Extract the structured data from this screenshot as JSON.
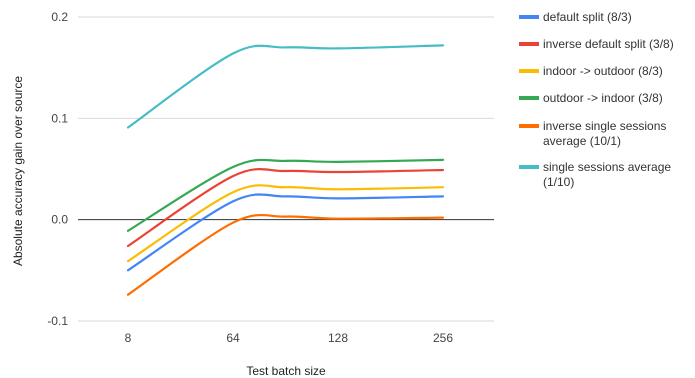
{
  "chart_data": {
    "type": "line",
    "title": "",
    "xlabel": "Test batch size",
    "ylabel": "Absolute accuracy gain over source",
    "x": [
      "8",
      "64",
      "128",
      "256"
    ],
    "ylim": [
      -0.1,
      0.2
    ],
    "yticks": [
      -0.1,
      0.0,
      0.1,
      0.2
    ],
    "ytick_labels": [
      "-0.1",
      "0.0",
      "0.1",
      "0.2"
    ],
    "grid": "horizontal",
    "legend_position": "right",
    "series": [
      {
        "name": "default split (8/3)",
        "color": "#4285f4",
        "points": [
          [
            8,
            -0.05
          ],
          [
            64,
            0.018
          ],
          [
            96,
            0.023
          ],
          [
            128,
            0.021
          ],
          [
            256,
            0.023
          ]
        ]
      },
      {
        "name": "inverse default split (3/8)",
        "color": "#ea4335",
        "points": [
          [
            8,
            -0.026
          ],
          [
            64,
            0.043
          ],
          [
            96,
            0.048
          ],
          [
            128,
            0.047
          ],
          [
            256,
            0.049
          ]
        ]
      },
      {
        "name": "indoor -> outdoor (8/3)",
        "color": "#fbbc04",
        "points": [
          [
            8,
            -0.041
          ],
          [
            64,
            0.027
          ],
          [
            96,
            0.032
          ],
          [
            128,
            0.03
          ],
          [
            256,
            0.032
          ]
        ]
      },
      {
        "name": "outdoor -> indoor (3/8)",
        "color": "#34a853",
        "points": [
          [
            8,
            -0.011
          ],
          [
            64,
            0.052
          ],
          [
            96,
            0.058
          ],
          [
            128,
            0.057
          ],
          [
            256,
            0.059
          ]
        ]
      },
      {
        "name": "inverse single sessions average (10/1)",
        "color": "#ff6d01",
        "points": [
          [
            8,
            -0.074
          ],
          [
            64,
            -0.003
          ],
          [
            96,
            0.003
          ],
          [
            128,
            0.001
          ],
          [
            256,
            0.002
          ]
        ]
      },
      {
        "name": "single sessions average (1/10)",
        "color": "#46bdc6",
        "points": [
          [
            8,
            0.091
          ],
          [
            64,
            0.164
          ],
          [
            96,
            0.17
          ],
          [
            128,
            0.169
          ],
          [
            256,
            0.172
          ]
        ]
      }
    ],
    "legend": [
      [
        "default split (8/3)"
      ],
      [
        "inverse default split (3/8)"
      ],
      [
        "indoor -> outdoor (8/3)"
      ],
      [
        "outdoor -> indoor (3/8)"
      ],
      [
        "inverse single sessions",
        "average (10/1)"
      ],
      [
        "single sessions average",
        "(1/10)"
      ]
    ]
  }
}
